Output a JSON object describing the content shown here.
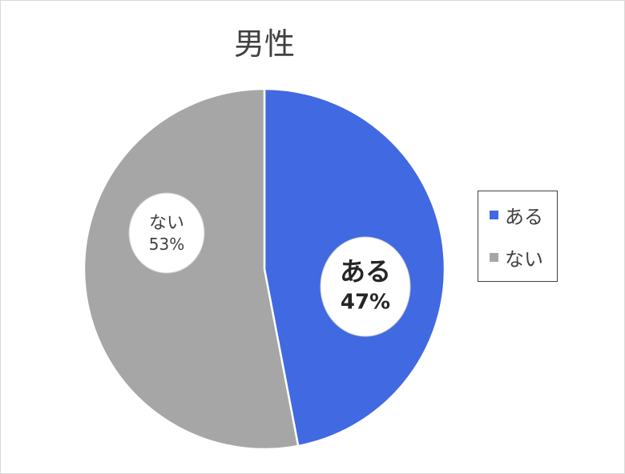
{
  "chart_data": {
    "type": "pie",
    "title": "男性",
    "slices": [
      {
        "name": "ある",
        "value": 47,
        "label": "47%",
        "color": "#4169e1"
      },
      {
        "name": "ない",
        "value": 53,
        "label": "53%",
        "color": "#a6a6a6"
      }
    ],
    "legend_position": "right"
  }
}
